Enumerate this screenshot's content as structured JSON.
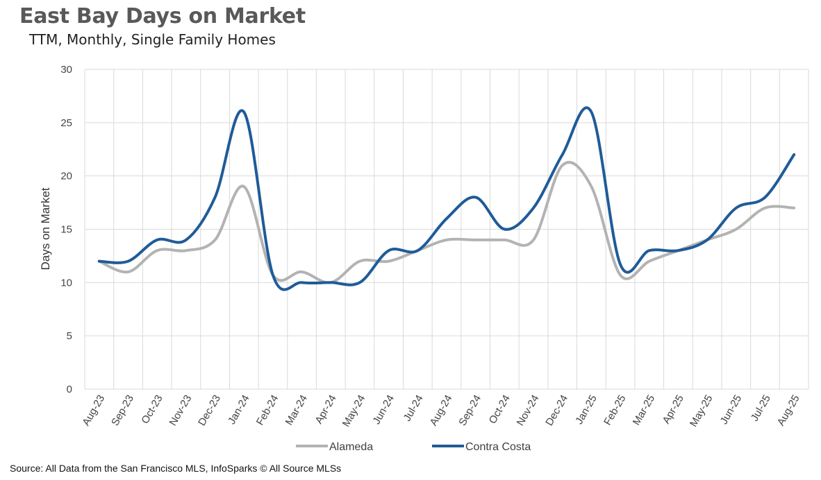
{
  "chart_data": {
    "type": "line",
    "title": "East Bay Days on Market",
    "subtitle": "TTM, Monthly, Single Family Homes",
    "xlabel": "",
    "ylabel": "Days on Market",
    "ylim": [
      0,
      30
    ],
    "yticks": [
      0,
      5,
      10,
      15,
      20,
      25,
      30
    ],
    "grid": true,
    "legend_position": "bottom",
    "categories": [
      "Aug-23",
      "Sep-23",
      "Oct-23",
      "Nov-23",
      "Dec-23",
      "Jan-24",
      "Feb-24",
      "Mar-24",
      "Apr-24",
      "May-24",
      "Jun-24",
      "Jul-24",
      "Aug-24",
      "Sep-24",
      "Oct-24",
      "Nov-24",
      "Dec-24",
      "Jan-25",
      "Feb-25",
      "Mar-25",
      "Apr-25",
      "May-25",
      "Jun-25",
      "Jul-25",
      "Aug-25"
    ],
    "series": [
      {
        "name": "Alameda",
        "color": "#b3b3b3",
        "values": [
          12,
          11,
          13,
          13,
          14,
          19,
          10.7,
          11,
          10,
          12,
          12,
          13,
          14,
          14,
          14,
          14,
          21,
          19,
          10.7,
          12,
          13,
          14,
          15,
          17,
          17
        ]
      },
      {
        "name": "Contra Costa",
        "color": "#1f5b98",
        "values": [
          12,
          12,
          14,
          14,
          18,
          26,
          10.7,
          10,
          10,
          10,
          13,
          13,
          16,
          18,
          15,
          17,
          22,
          26,
          11.7,
          13,
          13,
          14,
          17,
          18,
          22
        ]
      }
    ]
  },
  "source": "Source: All Data from the San Francisco MLS, InfoSparks © All Source MLSs"
}
